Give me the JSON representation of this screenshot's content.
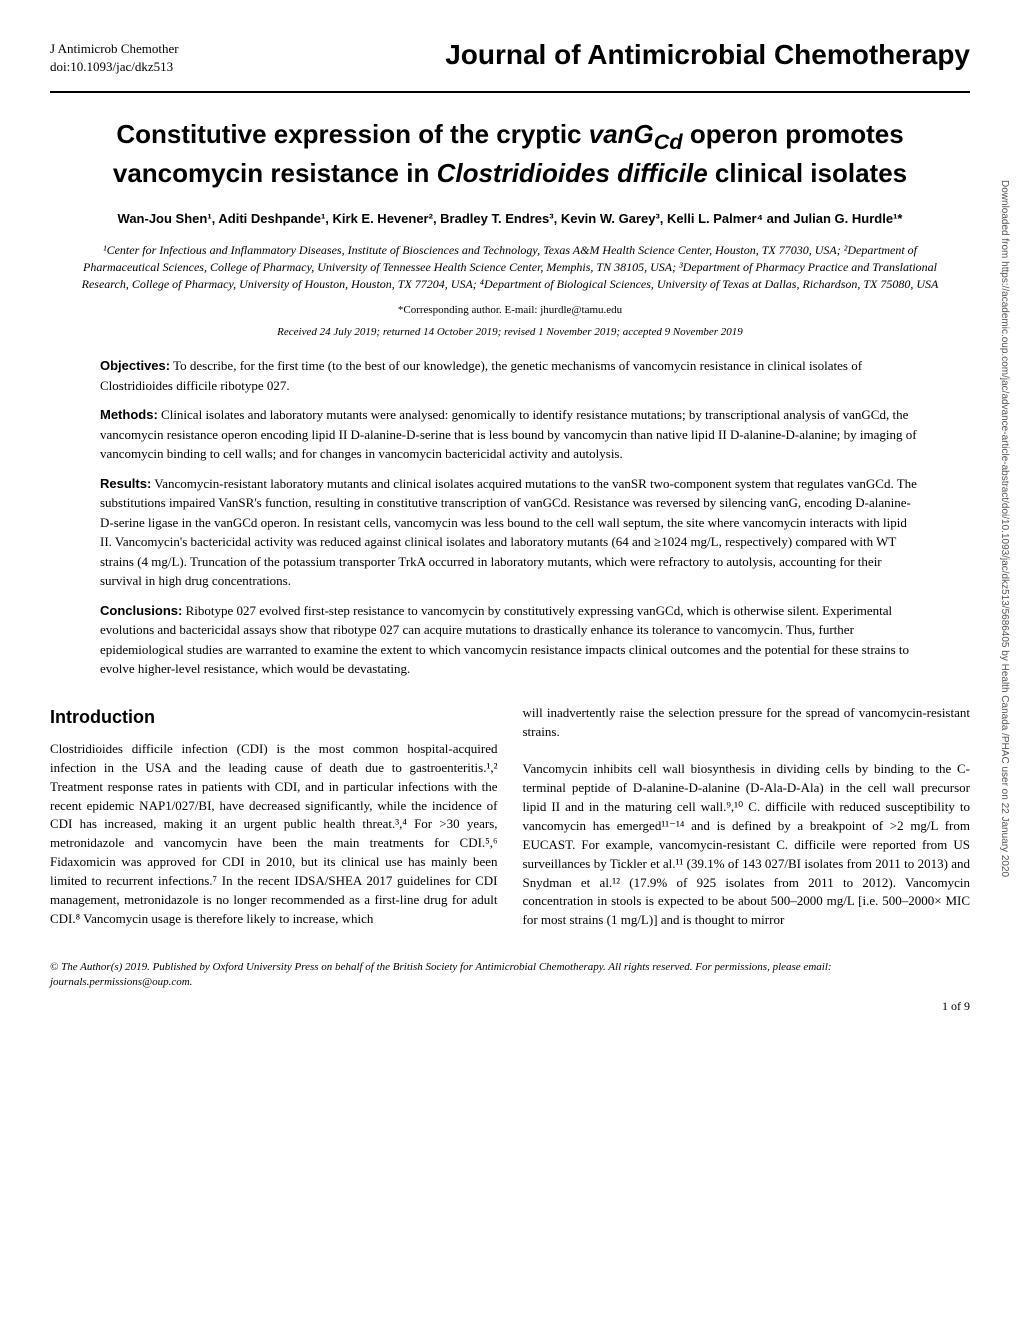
{
  "header": {
    "journal_short": "J Antimicrob Chemother",
    "doi": "doi:10.1093/jac/dkz513",
    "journal_full": "Journal of Antimicrobial Chemotherapy"
  },
  "title": {
    "line1": "Constitutive expression of the cryptic ",
    "italic1": "vanG",
    "sub1": "Cd",
    "line2": " operon promotes vancomycin resistance in ",
    "italic2": "Clostridioides difficile",
    "line3": " clinical isolates"
  },
  "authors": "Wan-Jou Shen¹, Aditi Deshpande¹, Kirk E. Hevener², Bradley T. Endres³, Kevin W. Garey³, Kelli L. Palmer⁴ and Julian G. Hurdle¹*",
  "affiliations": "¹Center for Infectious and Inflammatory Diseases, Institute of Biosciences and Technology, Texas A&M Health Science Center, Houston, TX 77030, USA; ²Department of Pharmaceutical Sciences, College of Pharmacy, University of Tennessee Health Science Center, Memphis, TN 38105, USA; ³Department of Pharmacy Practice and Translational Research, College of Pharmacy, University of Houston, Houston, TX 77204, USA; ⁴Department of Biological Sciences, University of Texas at Dallas, Richardson, TX 75080, USA",
  "corresponding": "*Corresponding author. E-mail: jhurdle@tamu.edu",
  "dates": "Received 24 July 2019; returned 14 October 2019; revised 1 November 2019; accepted 9 November 2019",
  "abstract": {
    "objectives_label": "Objectives:",
    "objectives_text": " To describe, for the first time (to the best of our knowledge), the genetic mechanisms of vancomycin resistance in clinical isolates of Clostridioides difficile ribotype 027.",
    "methods_label": "Methods:",
    "methods_text": " Clinical isolates and laboratory mutants were analysed: genomically to identify resistance mutations; by transcriptional analysis of vanGCd, the vancomycin resistance operon encoding lipid II D-alanine-D-serine that is less bound by vancomycin than native lipid II D-alanine-D-alanine; by imaging of vancomycin binding to cell walls; and for changes in vancomycin bactericidal activity and autolysis.",
    "results_label": "Results:",
    "results_text": " Vancomycin-resistant laboratory mutants and clinical isolates acquired mutations to the vanSR two-component system that regulates vanGCd. The substitutions impaired VanSR's function, resulting in constitutive transcription of vanGCd. Resistance was reversed by silencing vanG, encoding D-alanine-D-serine ligase in the vanGCd operon. In resistant cells, vancomycin was less bound to the cell wall septum, the site where vancomycin interacts with lipid II. Vancomycin's bactericidal activity was reduced against clinical isolates and laboratory mutants (64 and ≥1024 mg/L, respectively) compared with WT strains (4 mg/L). Truncation of the potassium transporter TrkA occurred in laboratory mutants, which were refractory to autolysis, accounting for their survival in high drug concentrations.",
    "conclusions_label": "Conclusions:",
    "conclusions_text": " Ribotype 027 evolved first-step resistance to vancomycin by constitutively expressing vanGCd, which is otherwise silent. Experimental evolutions and bactericidal assays show that ribotype 027 can acquire mutations to drastically enhance its tolerance to vancomycin. Thus, further epidemiological studies are warranted to examine the extent to which vancomycin resistance impacts clinical outcomes and the potential for these strains to evolve higher-level resistance, which would be devastating."
  },
  "introduction": {
    "heading": "Introduction",
    "col1": "Clostridioides difficile infection (CDI) is the most common hospital-acquired infection in the USA and the leading cause of death due to gastroenteritis.¹,² Treatment response rates in patients with CDI, and in particular infections with the recent epidemic NAP1/027/BI, have decreased significantly, while the incidence of CDI has increased, making it an urgent public health threat.³,⁴ For >30 years, metronidazole and vancomycin have been the main treatments for CDI.⁵,⁶ Fidaxomicin was approved for CDI in 2010, but its clinical use has mainly been limited to recurrent infections.⁷ In the recent IDSA/SHEA 2017 guidelines for CDI management, metronidazole is no longer recommended as a first-line drug for adult CDI.⁸ Vancomycin usage is therefore likely to increase, which",
    "col2": "will inadvertently raise the selection pressure for the spread of vancomycin-resistant strains.\n\nVancomycin inhibits cell wall biosynthesis in dividing cells by binding to the C-terminal peptide of D-alanine-D-alanine (D-Ala-D-Ala) in the cell wall precursor lipid II and in the maturing cell wall.⁹,¹⁰ C. difficile with reduced susceptibility to vancomycin has emerged¹¹⁻¹⁴ and is defined by a breakpoint of >2 mg/L from EUCAST. For example, vancomycin-resistant C. difficile were reported from US surveillances by Tickler et al.¹¹ (39.1% of 143 027/BI isolates from 2011 to 2013) and Snydman et al.¹² (17.9% of 925 isolates from 2011 to 2012). Vancomycin concentration in stools is expected to be about 500–2000 mg/L [i.e. 500–2000× MIC for most strains (1 mg/L)] and is thought to mirror"
  },
  "copyright": "© The Author(s) 2019. Published by Oxford University Press on behalf of the British Society for Antimicrobial Chemotherapy. All rights reserved. For permissions, please email: journals.permissions@oup.com.",
  "page_number": "1 of 9",
  "side_text": "Downloaded from https://academic.oup.com/jac/advance-article-abstract/doi/10.1093/jac/dkz513/5686405 by Health Canada /PHAC user on 22 January 2020",
  "colors": {
    "text": "#000000",
    "background": "#ffffff",
    "link": "#0066cc",
    "side": "#555555"
  }
}
